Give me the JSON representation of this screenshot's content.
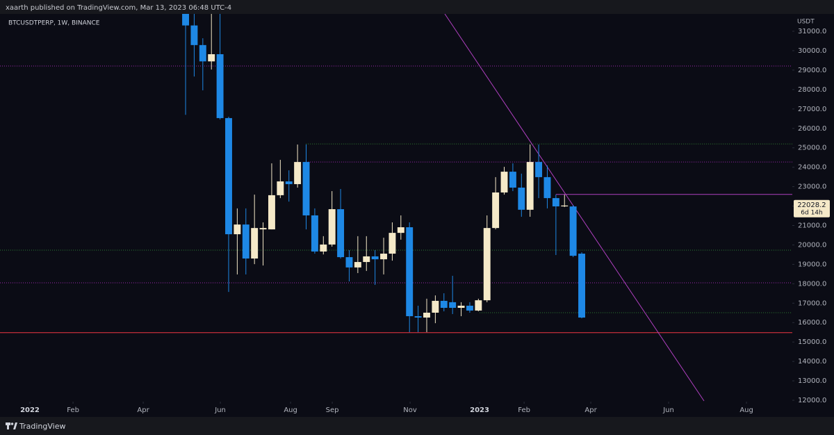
{
  "header": "xaarth published on TradingView.com, Mar 13, 2023 06:48 UTC-4",
  "footer": "TradingView",
  "chart_data": {
    "type": "candlestick",
    "title": "BTCUSDTPERP, 1W, BINANCE",
    "y_axis_label": "USDT",
    "up_color": "#f5e9c8",
    "down_color": "#1e88e5",
    "categories": [
      null,
      null,
      null,
      null,
      null,
      null,
      null,
      null,
      null,
      null,
      null,
      null,
      null,
      null,
      null,
      null,
      null,
      null,
      null,
      null,
      null,
      null,
      null,
      null,
      null,
      null,
      null,
      null,
      null,
      null,
      null,
      null,
      null,
      null,
      null,
      null,
      null,
      null,
      null,
      null,
      null,
      null,
      null,
      null,
      null,
      null,
      null
    ],
    "open": [
      34040,
      31300,
      30290,
      29450,
      29820,
      26530,
      20550,
      21050,
      19300,
      20800,
      20800,
      22560,
      23270,
      23130,
      24270,
      21520,
      19660,
      20020,
      21840,
      19370,
      18840,
      19120,
      19410,
      19260,
      19550,
      20620,
      20910,
      16330,
      16260,
      16510,
      17120,
      17050,
      16760,
      16870,
      16620,
      17150,
      20870,
      22700,
      23770,
      22950,
      21810,
      24270,
      23490,
      22410,
      21984,
      21980,
      19550
    ],
    "high": [
      34240,
      32000,
      30640,
      32400,
      31900,
      26600,
      21880,
      21880,
      22590,
      21160,
      24200,
      24380,
      23840,
      25170,
      25170,
      21880,
      20450,
      22770,
      22880,
      19730,
      20450,
      20450,
      19730,
      20370,
      21160,
      21520,
      21160,
      16870,
      17230,
      17400,
      17510,
      18410,
      17050,
      17050,
      17230,
      21520,
      23490,
      24020,
      24200,
      23670,
      25170,
      25170,
      24090,
      22590,
      22590,
      22050,
      19620
    ],
    "low": [
      26700,
      28670,
      27960,
      29030,
      26460,
      17580,
      18480,
      18480,
      19010,
      18940,
      20800,
      22410,
      22230,
      22950,
      20800,
      19550,
      19510,
      19910,
      19300,
      18120,
      18550,
      18660,
      17940,
      18480,
      19190,
      20270,
      15510,
      15510,
      15510,
      15970,
      16580,
      16440,
      16330,
      16510,
      16580,
      17050,
      20800,
      22590,
      22770,
      21450,
      21450,
      22410,
      21880,
      19480,
      21950,
      19370,
      16220
    ],
    "close": [
      31300,
      30290,
      29450,
      29820,
      26530,
      20550,
      21050,
      19300,
      20870,
      20870,
      22560,
      23270,
      23130,
      24270,
      21520,
      19660,
      20020,
      21840,
      19370,
      18840,
      19120,
      19410,
      19260,
      19550,
      20620,
      20910,
      16330,
      16260,
      16510,
      17120,
      16760,
      16760,
      16870,
      16620,
      17150,
      20870,
      22700,
      23770,
      22950,
      21810,
      24270,
      23490,
      22410,
      21984,
      22028.2,
      19440,
      16260
    ],
    "countdown": "6d 14h",
    "xlim": [
      -21.55,
      70.45
    ],
    "ylim": [
      11930,
      31895
    ],
    "xticks": [
      {
        "value": -18.08,
        "label": "2022"
      },
      {
        "value": -13.07,
        "label": "Feb"
      },
      {
        "value": -4.92,
        "label": "Apr"
      },
      {
        "value": 4.04,
        "label": "Jun"
      },
      {
        "value": 12.19,
        "label": "Aug"
      },
      {
        "value": 17.03,
        "label": "Sep"
      },
      {
        "value": 26.07,
        "label": "Nov"
      },
      {
        "value": 34.14,
        "label": "2023"
      },
      {
        "value": 39.31,
        "label": "Feb"
      },
      {
        "value": 47.05,
        "label": "Apr"
      },
      {
        "value": 56.09,
        "label": "Jun"
      },
      {
        "value": 65.13,
        "label": "Aug"
      }
    ],
    "yticks": [
      {
        "value": 31000,
        "label": "31000.0"
      },
      {
        "value": 30000,
        "label": "30000.0"
      },
      {
        "value": 29000,
        "label": "29000.0"
      },
      {
        "value": 28000,
        "label": "28000.0"
      },
      {
        "value": 27000,
        "label": "27000.0"
      },
      {
        "value": 26000,
        "label": "26000.0"
      },
      {
        "value": 25000,
        "label": "25000.0"
      },
      {
        "value": 24000,
        "label": "24000.0"
      },
      {
        "value": 23000,
        "label": "23000.0"
      },
      {
        "value": 22000,
        "label": "22000.0"
      },
      {
        "value": 21000,
        "label": "21000.0"
      },
      {
        "value": 20000,
        "label": "20000.0"
      },
      {
        "value": 19000,
        "label": "19000.0"
      },
      {
        "value": 18000,
        "label": "18000.0"
      },
      {
        "value": 17000,
        "label": "17000.0"
      },
      {
        "value": 16000,
        "label": "16000.0"
      },
      {
        "value": 15000,
        "label": "15000.0"
      },
      {
        "value": 14000,
        "label": "14000.0"
      },
      {
        "value": 13000,
        "label": "13000.0"
      },
      {
        "value": 12000,
        "label": "12000.0"
      }
    ],
    "grid": false,
    "levels": [
      {
        "value": 29210,
        "from": -21.55,
        "color": "#9c27b0",
        "style": "dotted"
      },
      {
        "value": 25200,
        "from": 13.97,
        "color": "#2e7d32",
        "style": "dotted"
      },
      {
        "value": 24270,
        "from": 13.97,
        "color": "#9c27b0",
        "style": "dotted"
      },
      {
        "value": 22600,
        "from": 43,
        "color": "#b040c0",
        "style": "solid"
      },
      {
        "value": 19730,
        "from": -21.55,
        "color": "#2e7d32",
        "style": "dotted"
      },
      {
        "value": 18050,
        "from": -21.55,
        "color": "#9c27b0",
        "style": "dotted"
      },
      {
        "value": 16510,
        "from": 34.14,
        "color": "#2e7d32",
        "style": "dotted"
      },
      {
        "value": 15480,
        "from": -21.55,
        "color": "#f23645",
        "style": "solid"
      }
    ],
    "trendline": {
      "x": [
        30.1,
        60.2
      ],
      "y": [
        31895,
        11965
      ],
      "color": "#b040c0"
    }
  }
}
